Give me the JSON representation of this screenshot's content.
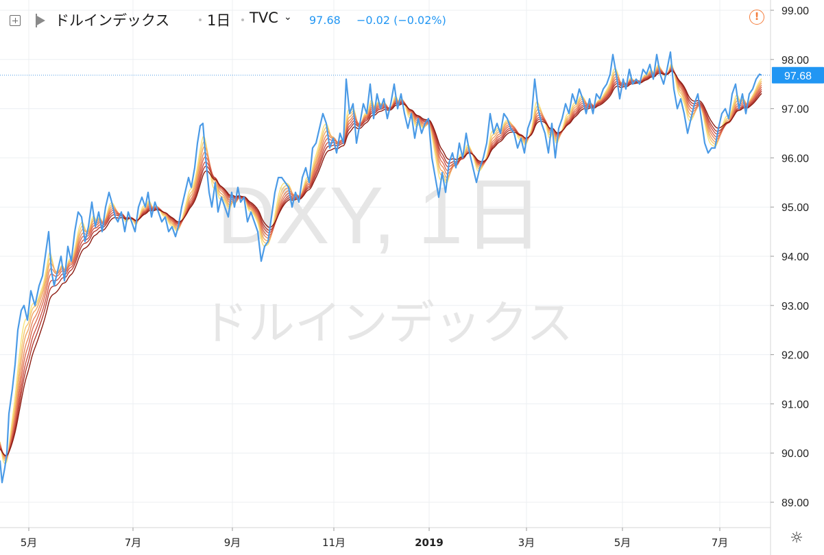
{
  "header": {
    "symbol_name": "ドルインデックス",
    "interval": "1日",
    "exchange": "TVC",
    "last_price": "97.68",
    "change": "−0.02 (−0.02%)",
    "add_icon": "plus-square-icon",
    "flag_icon": "flag-icon",
    "dropdown_icon": "chevron-down-icon",
    "alert_icon": "alert-circle-icon"
  },
  "watermark": {
    "line1": "DXY, 1日",
    "line2": "ドルインデックス"
  },
  "footer": {
    "settings_icon": "gear-icon"
  },
  "colors": {
    "price_line": "#4a9ae6",
    "price_label_bg": "#2196f3",
    "ribbon_fast": "#f7e27a",
    "ribbon_slow": "#8b1a10",
    "alert": "#f57c3a",
    "grid": "#eceff2",
    "watermark": "#e6e6e6"
  },
  "chart_data": {
    "type": "line",
    "title": "DXY, 1日",
    "ylim": [
      88.6,
      99.2
    ],
    "yticks": [
      "89.00",
      "90.00",
      "91.00",
      "92.00",
      "93.00",
      "94.00",
      "95.00",
      "96.00",
      "97.00",
      "98.00",
      "99.00"
    ],
    "xticks": [
      "5月",
      "7月",
      "9月",
      "11月",
      "2019",
      "3月",
      "5月",
      "7月"
    ],
    "current_price_label": "97.68",
    "grid": true,
    "legend": "none",
    "price_anchors": [
      [
        0,
        89.85
      ],
      [
        3,
        89.4
      ],
      [
        7,
        89.7
      ],
      [
        10,
        90.0
      ],
      [
        13,
        90.8
      ],
      [
        18,
        91.3
      ],
      [
        22,
        91.8
      ],
      [
        26,
        92.5
      ],
      [
        31,
        92.9
      ],
      [
        35,
        93.0
      ],
      [
        40,
        92.7
      ],
      [
        45,
        93.3
      ],
      [
        51,
        93.0
      ],
      [
        57,
        93.4
      ],
      [
        62,
        93.6
      ],
      [
        67,
        94.1
      ],
      [
        71,
        94.5
      ],
      [
        75,
        93.7
      ],
      [
        79,
        93.4
      ],
      [
        84,
        93.7
      ],
      [
        89,
        94.0
      ],
      [
        94,
        93.5
      ],
      [
        99,
        94.2
      ],
      [
        104,
        93.9
      ],
      [
        109,
        94.5
      ],
      [
        114,
        94.9
      ],
      [
        119,
        94.8
      ],
      [
        124,
        94.3
      ],
      [
        129,
        94.6
      ],
      [
        134,
        95.1
      ],
      [
        139,
        94.6
      ],
      [
        144,
        94.9
      ],
      [
        149,
        94.5
      ],
      [
        154,
        95.0
      ],
      [
        159,
        95.3
      ],
      [
        163,
        95.1
      ],
      [
        168,
        94.8
      ],
      [
        172,
        94.7
      ],
      [
        177,
        94.9
      ],
      [
        182,
        94.5
      ],
      [
        187,
        94.9
      ],
      [
        192,
        94.7
      ],
      [
        197,
        94.5
      ],
      [
        202,
        95.0
      ],
      [
        207,
        95.2
      ],
      [
        212,
        95.0
      ],
      [
        216,
        95.3
      ],
      [
        221,
        94.8
      ],
      [
        226,
        95.1
      ],
      [
        231,
        94.9
      ],
      [
        236,
        94.7
      ],
      [
        241,
        94.8
      ],
      [
        246,
        94.5
      ],
      [
        251,
        94.6
      ],
      [
        256,
        94.4
      ],
      [
        260,
        94.6
      ],
      [
        265,
        95.0
      ],
      [
        270,
        95.3
      ],
      [
        275,
        95.6
      ],
      [
        279,
        95.4
      ],
      [
        284,
        95.8
      ],
      [
        288,
        96.3
      ],
      [
        292,
        96.65
      ],
      [
        296,
        96.7
      ],
      [
        300,
        96.0
      ],
      [
        305,
        95.3
      ],
      [
        309,
        95.0
      ],
      [
        314,
        95.5
      ],
      [
        318,
        94.9
      ],
      [
        323,
        95.2
      ],
      [
        328,
        95.0
      ],
      [
        333,
        94.8
      ],
      [
        338,
        95.3
      ],
      [
        342,
        95.0
      ],
      [
        347,
        95.4
      ],
      [
        351,
        95.1
      ],
      [
        356,
        95.2
      ],
      [
        361,
        94.7
      ],
      [
        366,
        94.9
      ],
      [
        371,
        94.7
      ],
      [
        376,
        94.5
      ],
      [
        381,
        93.9
      ],
      [
        386,
        94.2
      ],
      [
        391,
        94.3
      ],
      [
        396,
        94.8
      ],
      [
        401,
        95.3
      ],
      [
        406,
        95.6
      ],
      [
        411,
        95.6
      ],
      [
        416,
        95.5
      ],
      [
        421,
        95.4
      ],
      [
        426,
        95.0
      ],
      [
        431,
        95.3
      ],
      [
        436,
        95.1
      ],
      [
        441,
        95.6
      ],
      [
        446,
        95.8
      ],
      [
        451,
        95.5
      ],
      [
        456,
        96.2
      ],
      [
        461,
        96.3
      ],
      [
        466,
        96.6
      ],
      [
        471,
        96.9
      ],
      [
        476,
        96.7
      ],
      [
        481,
        96.2
      ],
      [
        486,
        96.4
      ],
      [
        491,
        96.1
      ],
      [
        496,
        96.5
      ],
      [
        501,
        96.3
      ],
      [
        505,
        97.6
      ],
      [
        510,
        96.9
      ],
      [
        515,
        97.1
      ],
      [
        520,
        96.3
      ],
      [
        525,
        96.7
      ],
      [
        530,
        97.1
      ],
      [
        535,
        96.9
      ],
      [
        540,
        97.5
      ],
      [
        545,
        96.8
      ],
      [
        550,
        97.3
      ],
      [
        555,
        97.0
      ],
      [
        560,
        97.2
      ],
      [
        565,
        96.8
      ],
      [
        570,
        97.1
      ],
      [
        575,
        97.5
      ],
      [
        580,
        97.0
      ],
      [
        585,
        97.3
      ],
      [
        590,
        96.9
      ],
      [
        595,
        96.6
      ],
      [
        600,
        96.9
      ],
      [
        605,
        96.4
      ],
      [
        610,
        96.8
      ],
      [
        615,
        96.5
      ],
      [
        620,
        96.7
      ],
      [
        625,
        96.8
      ],
      [
        630,
        96.0
      ],
      [
        635,
        95.6
      ],
      [
        640,
        95.2
      ],
      [
        645,
        95.7
      ],
      [
        650,
        95.3
      ],
      [
        655,
        95.9
      ],
      [
        660,
        96.1
      ],
      [
        665,
        95.8
      ],
      [
        670,
        96.3
      ],
      [
        675,
        96.0
      ],
      [
        680,
        96.5
      ],
      [
        685,
        96.1
      ],
      [
        690,
        95.8
      ],
      [
        695,
        95.5
      ],
      [
        700,
        95.8
      ],
      [
        705,
        96.0
      ],
      [
        710,
        96.3
      ],
      [
        715,
        96.9
      ],
      [
        720,
        96.5
      ],
      [
        725,
        96.7
      ],
      [
        730,
        96.5
      ],
      [
        735,
        96.9
      ],
      [
        740,
        96.8
      ],
      [
        745,
        96.6
      ],
      [
        750,
        96.5
      ],
      [
        755,
        96.2
      ],
      [
        760,
        96.4
      ],
      [
        765,
        96.1
      ],
      [
        770,
        96.6
      ],
      [
        775,
        96.8
      ],
      [
        780,
        97.6
      ],
      [
        785,
        97.0
      ],
      [
        790,
        96.7
      ],
      [
        795,
        96.5
      ],
      [
        800,
        96.1
      ],
      [
        805,
        96.7
      ],
      [
        810,
        96.0
      ],
      [
        815,
        96.6
      ],
      [
        820,
        96.8
      ],
      [
        825,
        97.1
      ],
      [
        830,
        96.9
      ],
      [
        835,
        97.3
      ],
      [
        840,
        97.1
      ],
      [
        845,
        97.4
      ],
      [
        850,
        97.2
      ],
      [
        855,
        96.9
      ],
      [
        860,
        97.2
      ],
      [
        865,
        96.9
      ],
      [
        870,
        97.3
      ],
      [
        875,
        97.2
      ],
      [
        880,
        97.4
      ],
      [
        885,
        97.5
      ],
      [
        890,
        97.7
      ],
      [
        894,
        98.1
      ],
      [
        899,
        97.7
      ],
      [
        904,
        97.2
      ],
      [
        909,
        97.6
      ],
      [
        913,
        97.4
      ],
      [
        918,
        97.8
      ],
      [
        923,
        97.5
      ],
      [
        928,
        97.6
      ],
      [
        933,
        97.5
      ],
      [
        938,
        97.8
      ],
      [
        943,
        97.7
      ],
      [
        948,
        97.9
      ],
      [
        953,
        97.6
      ],
      [
        958,
        98.1
      ],
      [
        963,
        97.7
      ],
      [
        968,
        97.5
      ],
      [
        973,
        97.8
      ],
      [
        978,
        98.15
      ],
      [
        983,
        97.4
      ],
      [
        988,
        97.0
      ],
      [
        993,
        97.2
      ],
      [
        998,
        96.9
      ],
      [
        1003,
        96.5
      ],
      [
        1008,
        96.8
      ],
      [
        1013,
        97.1
      ],
      [
        1018,
        97.3
      ],
      [
        1023,
        96.8
      ],
      [
        1028,
        96.3
      ],
      [
        1033,
        96.1
      ],
      [
        1038,
        96.2
      ],
      [
        1043,
        96.2
      ],
      [
        1048,
        96.6
      ],
      [
        1053,
        96.9
      ],
      [
        1058,
        97.0
      ],
      [
        1063,
        96.8
      ],
      [
        1068,
        97.3
      ],
      [
        1073,
        97.5
      ],
      [
        1078,
        97.0
      ],
      [
        1083,
        97.3
      ],
      [
        1088,
        96.9
      ],
      [
        1093,
        97.3
      ],
      [
        1098,
        97.4
      ],
      [
        1103,
        97.6
      ],
      [
        1108,
        97.7
      ],
      [
        1111,
        97.68
      ]
    ]
  }
}
